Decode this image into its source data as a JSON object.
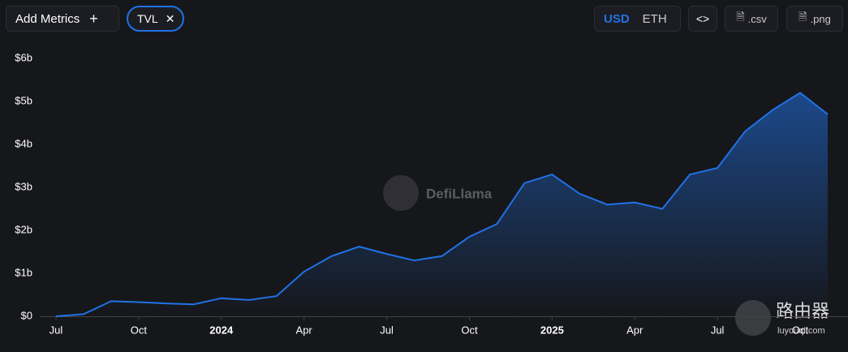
{
  "toolbar": {
    "add_metrics": "Add Metrics",
    "metric_chip": "TVL",
    "currencies": [
      "USD",
      "ETH"
    ],
    "downloads": [
      ".csv",
      ".png"
    ]
  },
  "watermarks": [
    "DefiLlama",
    "路由器",
    "luyouqi.com"
  ],
  "chart_data": {
    "type": "area",
    "color": "#2172e5",
    "x": [
      "2023-07",
      "2023-08",
      "2023-09",
      "2023-10",
      "2023-11",
      "2023-12",
      "2024-01",
      "2024-02",
      "2024-03",
      "2024-04",
      "2024-05",
      "2024-06",
      "2024-07",
      "2024-08",
      "2024-09",
      "2024-10",
      "2024-11",
      "2024-12",
      "2025-01",
      "2025-02",
      "2025-03",
      "2025-04",
      "2025-05",
      "2025-06",
      "2025-07",
      "2025-08",
      "2025-09",
      "2025-10",
      "2025-11"
    ],
    "series": [
      {
        "name": "TVL",
        "color": "#2172e5",
        "values": [
          0,
          0.05,
          0.35,
          0.33,
          0.3,
          0.28,
          0.42,
          0.38,
          0.47,
          1.04,
          1.4,
          1.62,
          1.45,
          1.3,
          1.4,
          1.85,
          2.15,
          3.1,
          3.3,
          2.85,
          2.6,
          2.65,
          2.5,
          3.3,
          3.45,
          4.3,
          4.8,
          5.2,
          4.7
        ]
      }
    ],
    "ylim": [
      0,
      6
    ],
    "yticks": [
      {
        "value": 0,
        "label": "$0"
      },
      {
        "value": 1,
        "label": "$1b"
      },
      {
        "value": 2,
        "label": "$2b"
      },
      {
        "value": 3,
        "label": "$3b"
      },
      {
        "value": 4,
        "label": "$4b"
      },
      {
        "value": 5,
        "label": "$5b"
      },
      {
        "value": 6,
        "label": "$6b"
      }
    ],
    "xlim": [
      "2023-06",
      "2025-11"
    ],
    "xticks": [
      {
        "value": "2023-07",
        "label": "Jul"
      },
      {
        "value": "2023-10",
        "label": "Oct"
      },
      {
        "value": "2024-01",
        "label": "2024"
      },
      {
        "value": "2024-04",
        "label": "Apr"
      },
      {
        "value": "2024-07",
        "label": "Jul"
      },
      {
        "value": "2024-10",
        "label": "Oct"
      },
      {
        "value": "2025-01",
        "label": "2025"
      },
      {
        "value": "2025-04",
        "label": "Apr"
      },
      {
        "value": "2025-07",
        "label": "Jul"
      },
      {
        "value": "2025-10",
        "label": "Oct"
      }
    ],
    "grid": false
  }
}
